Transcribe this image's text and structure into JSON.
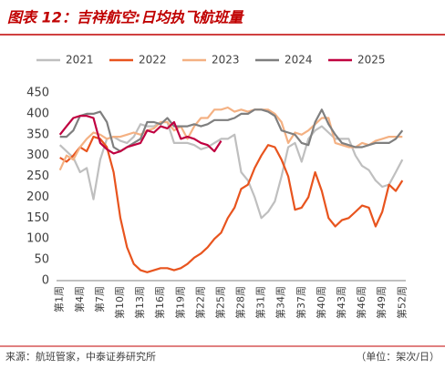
{
  "chart_data": {
    "type": "line",
    "title": "图表 12：吉祥航空:日均执飞航班量",
    "source": "来源：航班管家，中泰证券研究所",
    "unit": "（单位：架次/日）",
    "categories": [
      "第1周",
      null,
      null,
      "第4周",
      null,
      null,
      "第7周",
      null,
      null,
      "第10周",
      null,
      null,
      "第13周",
      null,
      null,
      "第16周",
      null,
      null,
      "第19周",
      null,
      null,
      "第22周",
      null,
      null,
      "第25周",
      null,
      null,
      "第28周",
      null,
      null,
      "第31周",
      null,
      null,
      "第34周",
      null,
      null,
      "第37周",
      null,
      null,
      "第40周",
      null,
      null,
      "第43周",
      null,
      null,
      "第46周",
      null,
      null,
      "第49周",
      null,
      null,
      "第52周"
    ],
    "ylim": [
      0,
      450
    ],
    "yticks": [
      0,
      50,
      100,
      150,
      200,
      250,
      300,
      350,
      400,
      450
    ],
    "grid": false,
    "legend": "top",
    "series": [
      {
        "name": "2021",
        "color": "#bfbfbf",
        "values": [
          325,
          310,
          295,
          260,
          270,
          195,
          290,
          340,
          345,
          335,
          330,
          345,
          375,
          370,
          370,
          380,
          380,
          330,
          330,
          330,
          325,
          315,
          320,
          330,
          340,
          340,
          350,
          260,
          240,
          200,
          150,
          165,
          190,
          250,
          320,
          330,
          285,
          340,
          360,
          370,
          355,
          340,
          340,
          340,
          300,
          275,
          265,
          240,
          225,
          230,
          260,
          290
        ]
      },
      {
        "name": "2022",
        "color": "#e8541e",
        "values": [
          295,
          285,
          300,
          320,
          310,
          345,
          340,
          320,
          260,
          150,
          80,
          40,
          25,
          20,
          25,
          30,
          30,
          25,
          30,
          40,
          55,
          65,
          80,
          100,
          115,
          150,
          175,
          220,
          230,
          270,
          300,
          325,
          320,
          290,
          250,
          170,
          175,
          200,
          260,
          215,
          150,
          130,
          145,
          150,
          165,
          180,
          175,
          130,
          165,
          230,
          215,
          240
        ]
      },
      {
        "name": "2023",
        "color": "#f4b183",
        "values": [
          265,
          300,
          290,
          320,
          340,
          355,
          350,
          340,
          345,
          345,
          350,
          355,
          350,
          360,
          365,
          380,
          380,
          360,
          370,
          340,
          370,
          390,
          390,
          410,
          410,
          415,
          405,
          410,
          405,
          410,
          410,
          410,
          400,
          380,
          330,
          355,
          350,
          360,
          375,
          390,
          390,
          330,
          325,
          320,
          320,
          330,
          325,
          335,
          340,
          345,
          345,
          345
        ]
      },
      {
        "name": "2024",
        "color": "#7f7f7f",
        "values": [
          345,
          345,
          360,
          395,
          400,
          400,
          405,
          380,
          320,
          310,
          320,
          330,
          340,
          380,
          380,
          375,
          390,
          370,
          370,
          370,
          375,
          370,
          375,
          385,
          385,
          385,
          390,
          400,
          400,
          410,
          410,
          405,
          395,
          360,
          355,
          350,
          330,
          325,
          380,
          410,
          375,
          350,
          330,
          325,
          320,
          320,
          325,
          330,
          330,
          330,
          340,
          360
        ]
      },
      {
        "name": "2025",
        "color": "#c00040",
        "values": [
          350,
          370,
          390,
          395,
          395,
          390,
          330,
          315,
          305,
          310,
          320,
          325,
          330,
          360,
          355,
          370,
          365,
          380,
          340,
          345,
          340,
          330,
          325,
          310,
          335,
          null,
          null,
          null,
          null,
          null,
          null,
          null,
          null,
          null,
          null,
          null,
          null,
          null,
          null,
          null,
          null,
          null,
          null,
          null,
          null,
          null,
          null,
          null,
          null,
          null,
          null,
          null
        ]
      }
    ]
  }
}
